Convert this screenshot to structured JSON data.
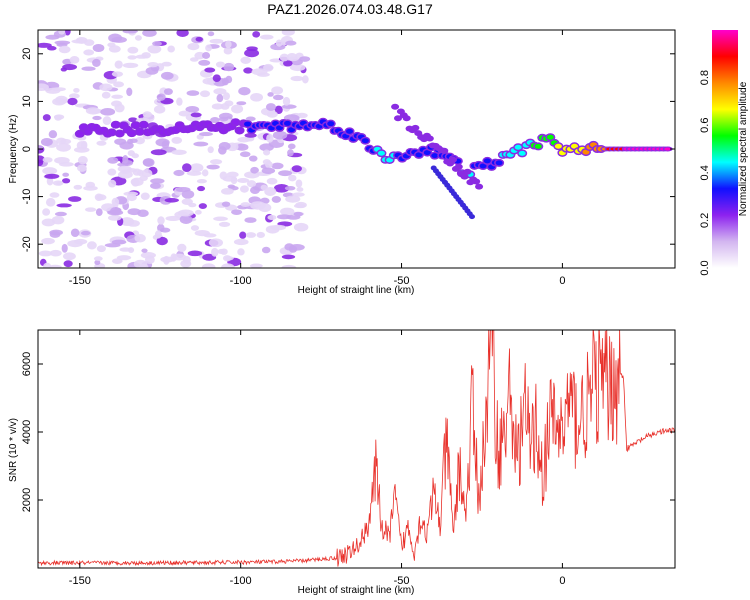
{
  "title": "PAZ1.2026.074.03.48.G17",
  "chart_data": [
    {
      "type": "heatmap",
      "xlabel": "Height of straight line (km)",
      "ylabel": "Frequency (Hz)",
      "xlim": [
        -163,
        35
      ],
      "ylim": [
        -25,
        25
      ],
      "xticks": [
        -150,
        -100,
        -50,
        0
      ],
      "yticks": [
        -20,
        -10,
        0,
        10,
        20
      ],
      "colorbar": {
        "label": "Normalized spectral amplitude",
        "range": [
          0,
          1
        ],
        "ticks": [
          0.0,
          0.2,
          0.4,
          0.6,
          0.8
        ],
        "tick_labels": [
          "0.0",
          "0.2",
          "0.4",
          "0.6",
          "0.8"
        ],
        "colors": [
          "#ffffff",
          "#d3b6f0",
          "#8d22ef",
          "#1010ff",
          "#00ffff",
          "#00ff00",
          "#ffff00",
          "#ff8800",
          "#ff0000",
          "#ff00cc"
        ]
      },
      "ridge": [
        {
          "x": -150,
          "f": 4,
          "a": 0.22
        },
        {
          "x": -78,
          "f": 5,
          "a": 0.3
        },
        {
          "x": -72,
          "f": 5,
          "a": 0.38
        },
        {
          "x": -65,
          "f": 3,
          "a": 0.32
        },
        {
          "x": -55,
          "f": -2,
          "a": 0.42
        },
        {
          "x": -42,
          "f": 0,
          "a": 0.3
        },
        {
          "x": -35,
          "f": -2,
          "a": 0.36
        },
        {
          "x": -30,
          "f": -5,
          "a": 0.4
        },
        {
          "x": -22,
          "f": -3,
          "a": 0.35
        },
        {
          "x": -15,
          "f": -1,
          "a": 0.45
        },
        {
          "x": -10,
          "f": 1,
          "a": 0.48
        },
        {
          "x": -5,
          "f": 2,
          "a": 0.6
        },
        {
          "x": 0,
          "f": 0,
          "a": 0.62
        },
        {
          "x": 5,
          "f": 0,
          "a": 0.7
        },
        {
          "x": 12,
          "f": 0,
          "a": 0.8
        },
        {
          "x": 20,
          "f": 0,
          "a": 0.95
        },
        {
          "x": 34,
          "f": 0,
          "a": 0.98
        }
      ]
    },
    {
      "type": "line",
      "xlabel": "Height of straight line (km)",
      "ylabel": "SNR (10 * v/v)",
      "xlim": [
        -163,
        35
      ],
      "ylim": [
        0,
        7000
      ],
      "xticks": [
        -150,
        -100,
        -50,
        0
      ],
      "yticks": [
        2000,
        4000,
        6000
      ],
      "series": [
        {
          "color": "#e8302a",
          "x": [
            -163,
            -150,
            -130,
            -110,
            -90,
            -80,
            -70,
            -65,
            -62,
            -60,
            -58,
            -56,
            -54,
            -52,
            -50,
            -48,
            -46,
            -44,
            -42,
            -40,
            -38,
            -36,
            -34,
            -32,
            -30,
            -28,
            -26,
            -24,
            -22,
            -20,
            -18,
            -16,
            -14,
            -12,
            -10,
            -8,
            -6,
            -4,
            -2,
            0,
            2,
            4,
            6,
            8,
            10,
            12,
            14,
            16,
            18,
            19,
            20,
            25,
            30,
            35
          ],
          "y": [
            150,
            150,
            150,
            160,
            180,
            220,
            300,
            500,
            900,
            1500,
            2800,
            1200,
            900,
            2000,
            600,
            1200,
            500,
            1500,
            1000,
            2200,
            1300,
            3800,
            1000,
            3000,
            1500,
            4800,
            2000,
            4000,
            6800,
            3400,
            4000,
            5200,
            3000,
            4800,
            3600,
            4200,
            2600,
            4300,
            4200,
            4000,
            4900,
            4400,
            4500,
            4800,
            5400,
            5500,
            5300,
            5500,
            5700,
            5600,
            3500,
            3800,
            4000,
            4050
          ]
        }
      ]
    }
  ]
}
